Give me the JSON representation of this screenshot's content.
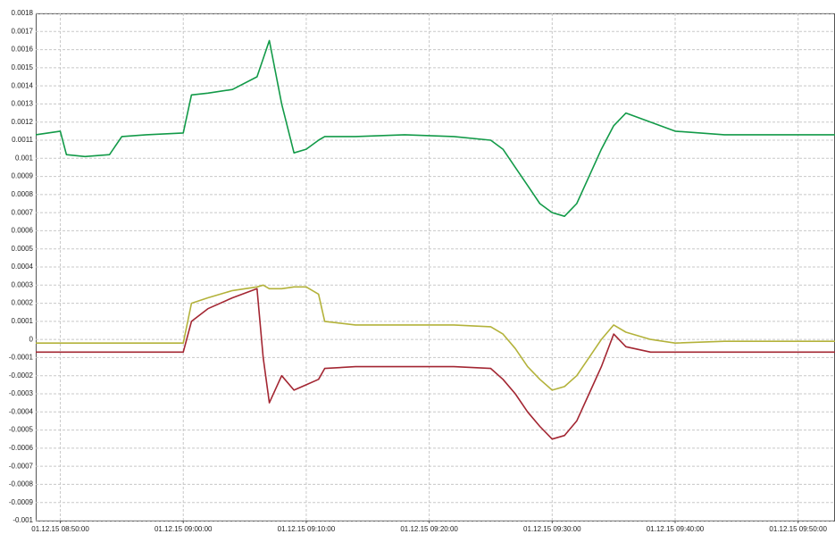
{
  "chart_data": {
    "type": "line",
    "x": [
      "01.12.15 08:48:00",
      "01.12.15 08:49:00",
      "01.12.15 08:50:00",
      "01.12.15 08:50:30",
      "01.12.15 08:52:00",
      "01.12.15 08:54:00",
      "01.12.15 08:55:00",
      "01.12.15 08:57:00",
      "01.12.15 09:00:00",
      "01.12.15 09:00:40",
      "01.12.15 09:02:00",
      "01.12.15 09:04:00",
      "01.12.15 09:06:00",
      "01.12.15 09:06:30",
      "01.12.15 09:07:00",
      "01.12.15 09:08:00",
      "01.12.15 09:09:00",
      "01.12.15 09:10:00",
      "01.12.15 09:11:00",
      "01.12.15 09:11:30",
      "01.12.15 09:14:00",
      "01.12.15 09:18:00",
      "01.12.15 09:22:00",
      "01.12.15 09:25:00",
      "01.12.15 09:26:00",
      "01.12.15 09:27:00",
      "01.12.15 09:28:00",
      "01.12.15 09:29:00",
      "01.12.15 09:30:00",
      "01.12.15 09:31:00",
      "01.12.15 09:32:00",
      "01.12.15 09:33:00",
      "01.12.15 09:34:00",
      "01.12.15 09:35:00",
      "01.12.15 09:36:00",
      "01.12.15 09:38:00",
      "01.12.15 09:40:00",
      "01.12.15 09:44:00",
      "01.12.15 09:48:00",
      "01.12.15 09:53:00"
    ],
    "series": [
      {
        "color": "#129a48",
        "values": [
          0.00113,
          0.00114,
          0.00115,
          0.00102,
          0.00101,
          0.00102,
          0.00112,
          0.00113,
          0.00114,
          0.00135,
          0.00136,
          0.00138,
          0.00145,
          0.00155,
          0.00165,
          0.0013,
          0.00103,
          0.00105,
          0.0011,
          0.00112,
          0.00112,
          0.00113,
          0.00112,
          0.0011,
          0.00105,
          0.00095,
          0.00085,
          0.00075,
          0.0007,
          0.00068,
          0.00075,
          0.0009,
          0.00105,
          0.00118,
          0.00125,
          0.0012,
          0.00115,
          0.00113,
          0.00113,
          0.00113
        ]
      },
      {
        "color": "#b3b23a",
        "values": [
          -2e-05,
          -2e-05,
          -2e-05,
          -2e-05,
          -2e-05,
          -2e-05,
          -2e-05,
          -2e-05,
          -2e-05,
          0.0002,
          0.00023,
          0.00027,
          0.00029,
          0.0003,
          0.00028,
          0.00028,
          0.00029,
          0.00029,
          0.00025,
          0.0001,
          8e-05,
          8e-05,
          8e-05,
          7e-05,
          3e-05,
          -5e-05,
          -0.00015,
          -0.00022,
          -0.00028,
          -0.00026,
          -0.0002,
          -0.0001,
          0,
          8e-05,
          4e-05,
          0,
          -2e-05,
          -1e-05,
          -1e-05,
          -1e-05
        ]
      },
      {
        "color": "#a32632",
        "values": [
          -7e-05,
          -7e-05,
          -7e-05,
          -7e-05,
          -7e-05,
          -7e-05,
          -7e-05,
          -7e-05,
          -7e-05,
          0.0001,
          0.00017,
          0.00023,
          0.00028,
          -0.0001,
          -0.00035,
          -0.0002,
          -0.00028,
          -0.00025,
          -0.00022,
          -0.00016,
          -0.00015,
          -0.00015,
          -0.00015,
          -0.00016,
          -0.00022,
          -0.0003,
          -0.0004,
          -0.00048,
          -0.00055,
          -0.00053,
          -0.00045,
          -0.0003,
          -0.00015,
          3e-05,
          -4e-05,
          -7e-05,
          -7e-05,
          -7e-05,
          -7e-05,
          -7e-05
        ]
      }
    ],
    "xlim": [
      "01.12.15 08:48:00",
      "01.12.15 09:53:00"
    ],
    "xticks": [
      "01.12.15 08:50:00",
      "01.12.15 09:00:00",
      "01.12.15 09:10:00",
      "01.12.15 09:20:00",
      "01.12.15 09:30:00",
      "01.12.15 09:40:00",
      "01.12.15 09:50:00"
    ],
    "ylim": [
      -0.001,
      0.0018
    ],
    "yticks": [
      -0.001,
      -0.0009,
      -0.0008,
      -0.0007,
      -0.0006,
      -0.0005,
      -0.0004,
      -0.0003,
      -0.0002,
      -0.0001,
      0,
      0.0001,
      0.0002,
      0.0003,
      0.0004,
      0.0005,
      0.0006,
      0.0007,
      0.0008,
      0.0009,
      0.001,
      0.0011,
      0.0012,
      0.0013,
      0.0014,
      0.0015,
      0.0016,
      0.0017,
      0.0018
    ],
    "grid": true
  }
}
